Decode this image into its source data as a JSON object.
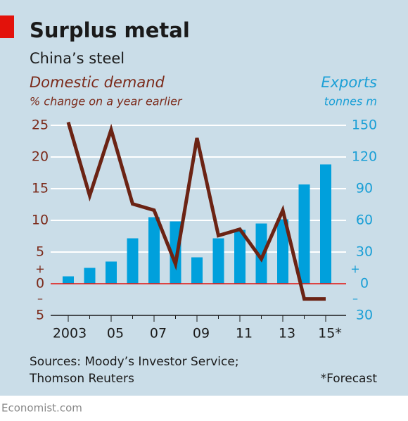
{
  "chart_data": {
    "type": "bar-line",
    "title": "Surplus metal",
    "subtitle": "China’s steel",
    "left_axis_title": "Domestic demand",
    "left_axis_subtitle": "% change on a year earlier",
    "right_axis_title": "Exports",
    "right_axis_subtitle": "tonnes m",
    "sign_labels": {
      "plus": "+",
      "minus": "–"
    },
    "categories": [
      "2003",
      null,
      "05",
      null,
      "07",
      null,
      "09",
      null,
      "11",
      null,
      "13",
      null,
      "15*"
    ],
    "series": [
      {
        "name": "Exports",
        "type": "bar",
        "axis": "y2",
        "color": "#00a0dc",
        "values": [
          7,
          15,
          21,
          43,
          63,
          59,
          25,
          43,
          51,
          57,
          61,
          94,
          113
        ]
      },
      {
        "name": "Domestic demand",
        "type": "line",
        "axis": "y",
        "color": "#6b2314",
        "values": [
          25.5,
          13.9,
          24.3,
          12.6,
          11.6,
          3.1,
          23,
          7.6,
          8.6,
          3.9,
          11.6,
          -2.4,
          -2.4
        ]
      }
    ],
    "ylim": [
      -5,
      25
    ],
    "yticks": [
      {
        "value": -5,
        "label": "5"
      },
      0,
      5,
      10,
      15,
      20,
      25
    ],
    "y2lim": [
      -30,
      150
    ],
    "y2ticks": [
      {
        "value": -30,
        "label": "30"
      },
      0,
      30,
      60,
      90,
      120,
      150
    ],
    "grid": true,
    "sources": [
      "Sources: Moody’s Investor Service;",
      "Thomson Reuters"
    ],
    "footnote": "*Forecast",
    "brand": "Economist.com"
  }
}
